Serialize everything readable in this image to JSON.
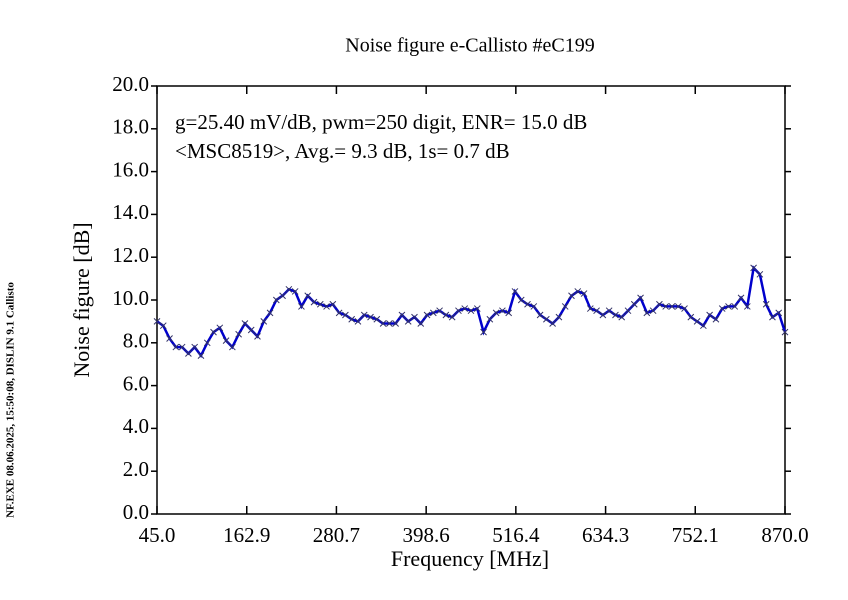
{
  "chart_data": {
    "type": "line",
    "title": "Noise figure e-Callisto #eC199",
    "annotations": [
      "g=25.40 mV/dB, pwm=250 digit, ENR= 15.0 dB",
      "<MSC8519>, Avg.= 9.3 dB, 1s= 0.7 dB"
    ],
    "side_note": "NF.EXE 08.06.2025, 15:50:08, DISLIN 9.1 Callisto",
    "xlabel": "Frequency [MHz]",
    "ylabel": "Noise figure [dB]",
    "xlim": [
      45,
      870
    ],
    "ylim": [
      0,
      20
    ],
    "xticks": [
      {
        "value": 45,
        "label": "45.0"
      },
      162.9,
      280.7,
      398.6,
      516.4,
      634.3,
      752.1,
      {
        "value": 870,
        "label": "870.0"
      }
    ],
    "yticks": [
      {
        "value": 0,
        "label": "0.0"
      },
      {
        "value": 2,
        "label": "2.0"
      },
      {
        "value": 4,
        "label": "4.0"
      },
      {
        "value": 6,
        "label": "6.0"
      },
      {
        "value": 8,
        "label": "8.0"
      },
      {
        "value": 10,
        "label": "10.0"
      },
      {
        "value": 12,
        "label": "12.0"
      },
      {
        "value": 14,
        "label": "14.0"
      },
      {
        "value": 16,
        "label": "16.0"
      },
      {
        "value": 18,
        "label": "18.0"
      },
      {
        "value": 20,
        "label": "20.0"
      }
    ],
    "x": [
      45,
      53.25,
      61.5,
      69.75,
      78,
      86.25,
      94.5,
      102.75,
      111,
      119.25,
      127.5,
      135.75,
      144,
      152.25,
      160.5,
      168.75,
      177,
      185.25,
      193.5,
      201.75,
      210,
      218.25,
      226.5,
      234.75,
      243,
      251.25,
      259.5,
      267.75,
      276,
      284.25,
      292.5,
      300.75,
      309,
      317.25,
      325.5,
      333.75,
      342,
      350.25,
      358.5,
      366.75,
      375,
      383.25,
      391.5,
      399.75,
      408,
      416.25,
      424.5,
      432.75,
      441,
      449.25,
      457.5,
      465.75,
      474,
      482.25,
      490.5,
      498.75,
      507,
      515.25,
      523.5,
      531.75,
      540,
      548.25,
      556.5,
      564.75,
      573,
      581.25,
      589.5,
      597.75,
      606,
      614.25,
      622.5,
      630.75,
      639,
      647.25,
      655.5,
      663.75,
      672,
      680.25,
      688.5,
      696.75,
      705,
      713.25,
      721.5,
      729.75,
      738,
      746.25,
      754.5,
      762.75,
      771,
      779.25,
      787.5,
      795.75,
      804,
      812.25,
      820.5,
      828.75,
      837,
      845.25,
      853.5,
      861.75,
      870
    ],
    "series": [
      {
        "color": "#0000cc",
        "marker_color": "#333366",
        "values": [
          9.0,
          8.8,
          8.2,
          7.8,
          7.8,
          7.5,
          7.8,
          7.4,
          8.0,
          8.5,
          8.7,
          8.1,
          7.8,
          8.4,
          8.9,
          8.6,
          8.3,
          9.0,
          9.4,
          10.0,
          10.2,
          10.5,
          10.4,
          9.7,
          10.2,
          9.9,
          9.8,
          9.7,
          9.8,
          9.4,
          9.3,
          9.1,
          9.0,
          9.3,
          9.2,
          9.1,
          8.9,
          8.9,
          8.9,
          9.3,
          9.0,
          9.2,
          8.9,
          9.3,
          9.4,
          9.5,
          9.3,
          9.2,
          9.5,
          9.6,
          9.5,
          9.6,
          8.5,
          9.1,
          9.4,
          9.5,
          9.4,
          10.4,
          10.0,
          9.8,
          9.7,
          9.3,
          9.1,
          8.9,
          9.2,
          9.7,
          10.2,
          10.4,
          10.3,
          9.6,
          9.5,
          9.3,
          9.5,
          9.3,
          9.2,
          9.5,
          9.8,
          10.1,
          9.4,
          9.5,
          9.8,
          9.7,
          9.7,
          9.7,
          9.6,
          9.2,
          9.0,
          8.8,
          9.3,
          9.1,
          9.6,
          9.7,
          9.7,
          10.1,
          9.7,
          11.5,
          11.2,
          9.8,
          9.2,
          9.4,
          8.5
        ]
      }
    ]
  }
}
